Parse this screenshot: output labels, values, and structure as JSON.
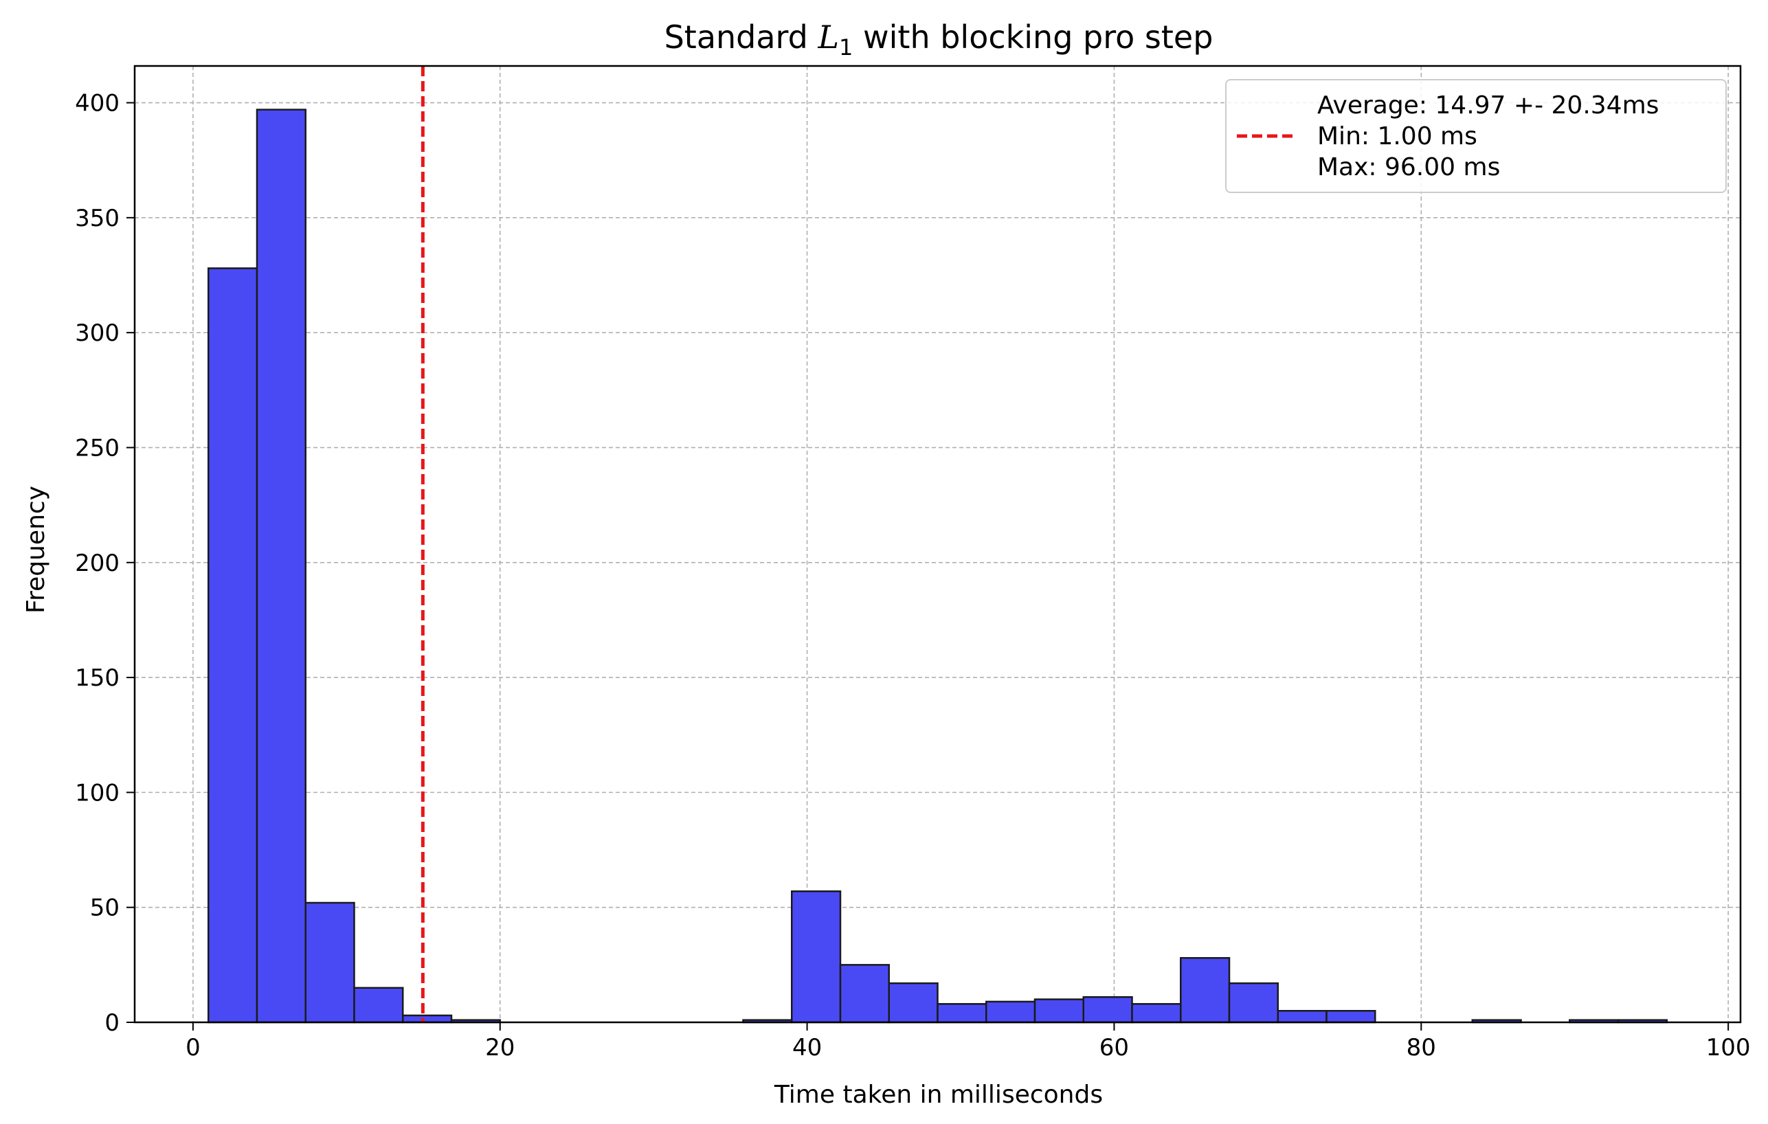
{
  "chart_data": {
    "type": "bar",
    "title_prefix": "Standard ",
    "title_math_letter": "L",
    "title_math_subscript": "1",
    "title_suffix": " with blocking pro step",
    "xlabel": "Time taken in milliseconds",
    "ylabel": "Frequency",
    "xlim": [
      -3.8,
      100.8
    ],
    "ylim": [
      0,
      416
    ],
    "xticks": [
      0,
      20,
      40,
      60,
      80,
      100
    ],
    "yticks": [
      0,
      50,
      100,
      150,
      200,
      250,
      300,
      350,
      400
    ],
    "grid": true,
    "bin_start": 1.0,
    "bin_width": 3.1667,
    "bin_counts": [
      328,
      397,
      52,
      15,
      3,
      1,
      0,
      0,
      0,
      0,
      0,
      1,
      57,
      25,
      17,
      8,
      9,
      10,
      11,
      8,
      28,
      17,
      5,
      5,
      0,
      0,
      1,
      0,
      1,
      1
    ],
    "bar_color": "#4a4af5",
    "bar_edge_color": "#1a1a1a",
    "vline": {
      "x": 14.97,
      "color": "#e8161a",
      "style": "dashed"
    },
    "legend": {
      "placement": "top-right",
      "lines": [
        "Average: 14.97 +- 20.34ms",
        "Min: 1.00 ms",
        "Max: 96.00 ms"
      ]
    }
  }
}
